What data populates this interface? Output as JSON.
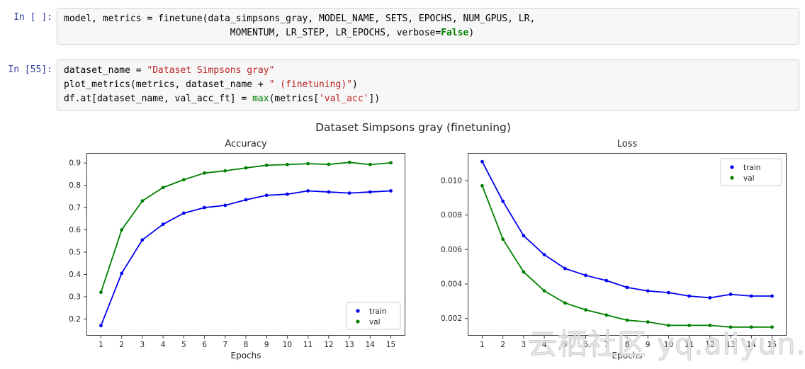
{
  "notebook": {
    "cells": [
      {
        "prompt": "In [ ]:",
        "lines": [
          [
            {
              "t": "model, metrics = finetune(data_simpsons_gray, MODEL_NAME, SETS, EPOCHS, NUM_GPUS, LR,",
              "c": "plain"
            }
          ],
          [
            {
              "t": "                              MOMENTUM, LR_STEP, LR_EPOCHS, verbose=",
              "c": "plain"
            },
            {
              "t": "False",
              "c": "kw"
            },
            {
              "t": ")",
              "c": "plain"
            }
          ]
        ]
      },
      {
        "prompt": "In [55]:",
        "lines": [
          [
            {
              "t": "dataset_name = ",
              "c": "plain"
            },
            {
              "t": "\"Dataset Simpsons gray\"",
              "c": "str"
            }
          ],
          [
            {
              "t": "plot_metrics(metrics, dataset_name + ",
              "c": "plain"
            },
            {
              "t": "\" (finetuning)\"",
              "c": "str"
            },
            {
              "t": ")",
              "c": "plain"
            }
          ],
          [
            {
              "t": "df.at[dataset_name, val_acc_ft] = ",
              "c": "plain"
            },
            {
              "t": "max",
              "c": "builtin"
            },
            {
              "t": "(metrics[",
              "c": "plain"
            },
            {
              "t": "'val_acc'",
              "c": "str"
            },
            {
              "t": "])",
              "c": "plain"
            }
          ]
        ]
      }
    ]
  },
  "figure": {
    "title": "Dataset Simpsons gray (finetuning)",
    "watermark": "云栖社区 yq.aliyun.com"
  },
  "colors": {
    "train": "#0000ee",
    "val": "#008000",
    "prompt": "#303f9f",
    "string": "#ba2121",
    "keyword": "#008000",
    "axis_text": "#262626",
    "spine": "#3c3c3c",
    "legend_edge": "#cccccc",
    "cell_bg": "#f7f7f7",
    "cell_border": "#cfcfcf",
    "watermark": "#dcdcdc"
  },
  "chart_data": [
    {
      "type": "line",
      "title": "Accuracy",
      "xlabel": "Epochs",
      "ylabel": "",
      "x": [
        1,
        2,
        3,
        4,
        5,
        6,
        7,
        8,
        9,
        10,
        11,
        12,
        13,
        14,
        15
      ],
      "series": [
        {
          "name": "train",
          "color": "#0000ee",
          "values": [
            0.17,
            0.405,
            0.555,
            0.625,
            0.675,
            0.7,
            0.71,
            0.735,
            0.755,
            0.76,
            0.775,
            0.77,
            0.765,
            0.77,
            0.775
          ]
        },
        {
          "name": "val",
          "color": "#008000",
          "values": [
            0.32,
            0.6,
            0.73,
            0.79,
            0.825,
            0.855,
            0.865,
            0.878,
            0.89,
            0.893,
            0.897,
            0.894,
            0.903,
            0.893,
            0.901
          ]
        }
      ],
      "xlim": [
        0.3,
        15.7
      ],
      "ylim": [
        0.125,
        0.945
      ],
      "xticks": [
        1,
        2,
        3,
        4,
        5,
        6,
        7,
        8,
        9,
        10,
        11,
        12,
        13,
        14,
        15
      ],
      "yticks": [
        0.2,
        0.3,
        0.4,
        0.5,
        0.6,
        0.7,
        0.8,
        0.9
      ],
      "ytick_decimals": 1,
      "legend_position": "lower right",
      "grid": false
    },
    {
      "type": "line",
      "title": "Loss",
      "xlabel": "Epochs",
      "ylabel": "",
      "x": [
        1,
        2,
        3,
        4,
        5,
        6,
        7,
        8,
        9,
        10,
        11,
        12,
        13,
        14,
        15
      ],
      "series": [
        {
          "name": "train",
          "color": "#0000ee",
          "values": [
            0.0111,
            0.0088,
            0.0068,
            0.0057,
            0.0049,
            0.0045,
            0.0042,
            0.0038,
            0.0036,
            0.0035,
            0.0033,
            0.0032,
            0.0034,
            0.0033,
            0.0033
          ]
        },
        {
          "name": "val",
          "color": "#008000",
          "values": [
            0.0097,
            0.0066,
            0.0047,
            0.0036,
            0.0029,
            0.0025,
            0.0022,
            0.0019,
            0.0018,
            0.0016,
            0.0016,
            0.0016,
            0.0015,
            0.0015,
            0.0015
          ]
        }
      ],
      "xlim": [
        0.3,
        15.7
      ],
      "ylim": [
        0.001,
        0.0116
      ],
      "xticks": [
        1,
        2,
        3,
        4,
        5,
        6,
        7,
        8,
        9,
        10,
        11,
        12,
        13,
        14,
        15
      ],
      "yticks": [
        0.002,
        0.004,
        0.006,
        0.008,
        0.01
      ],
      "ytick_decimals": 3,
      "legend_position": "upper right",
      "grid": false
    }
  ]
}
